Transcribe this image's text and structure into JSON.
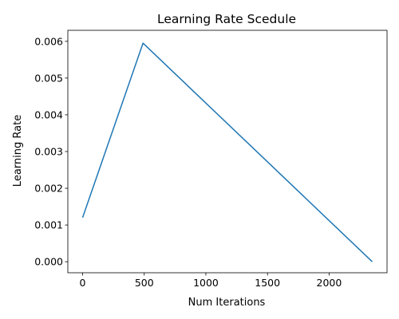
{
  "chart_data": {
    "type": "line",
    "title": "Learning Rate Scedule",
    "xlabel": "Num Iterations",
    "ylabel": "Learning Rate",
    "xlim": [
      -120,
      2470
    ],
    "ylim": [
      -0.0003,
      0.0063
    ],
    "xticks": [
      0,
      500,
      1000,
      1500,
      2000
    ],
    "xtick_labels": [
      "0",
      "500",
      "1000",
      "1500",
      "2000"
    ],
    "yticks": [
      0,
      0.001,
      0.002,
      0.003,
      0.004,
      0.005,
      0.006
    ],
    "ytick_labels": [
      "0.000",
      "0.001",
      "0.002",
      "0.003",
      "0.004",
      "0.005",
      "0.006"
    ],
    "grid": false,
    "series": [
      {
        "color": "#1f77b4",
        "x": [
          0,
          490,
          2350
        ],
        "y": [
          0.0012,
          0.00595,
          0.0
        ]
      }
    ]
  }
}
